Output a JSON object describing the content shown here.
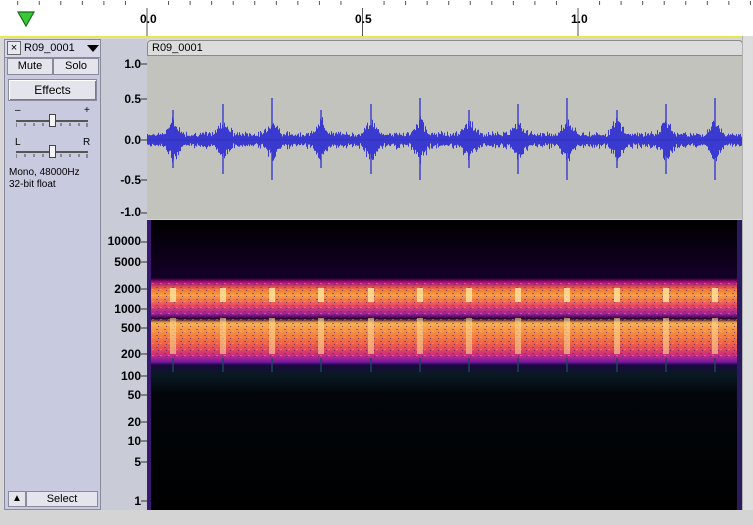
{
  "ruler": {
    "ticks": [
      "0.0",
      "0.5",
      "1.0"
    ]
  },
  "track": {
    "name": "R09_0001",
    "close_label": "×",
    "mute_label": "Mute",
    "solo_label": "Solo",
    "effects_label": "Effects",
    "gain_minus": "–",
    "gain_plus": "+",
    "pan_left": "L",
    "pan_right": "R",
    "info_line1": "Mono, 48000Hz",
    "info_line2": "32-bit float",
    "select_label": "Select",
    "collapse_label": "▲"
  },
  "waveform": {
    "title": "R09_0001",
    "y_labels": [
      "1.0",
      "0.5",
      "0.0",
      "-0.5",
      "-1.0"
    ]
  },
  "spectrogram": {
    "y_labels": [
      "10000",
      "5000",
      "2000",
      "1000",
      "500",
      "200",
      "100",
      "50",
      "20",
      "10",
      "5",
      "1"
    ]
  },
  "colors": {
    "wave": "#3a3ad0",
    "accent_selection": "#e8e84a",
    "play_marker": "#38b838"
  }
}
